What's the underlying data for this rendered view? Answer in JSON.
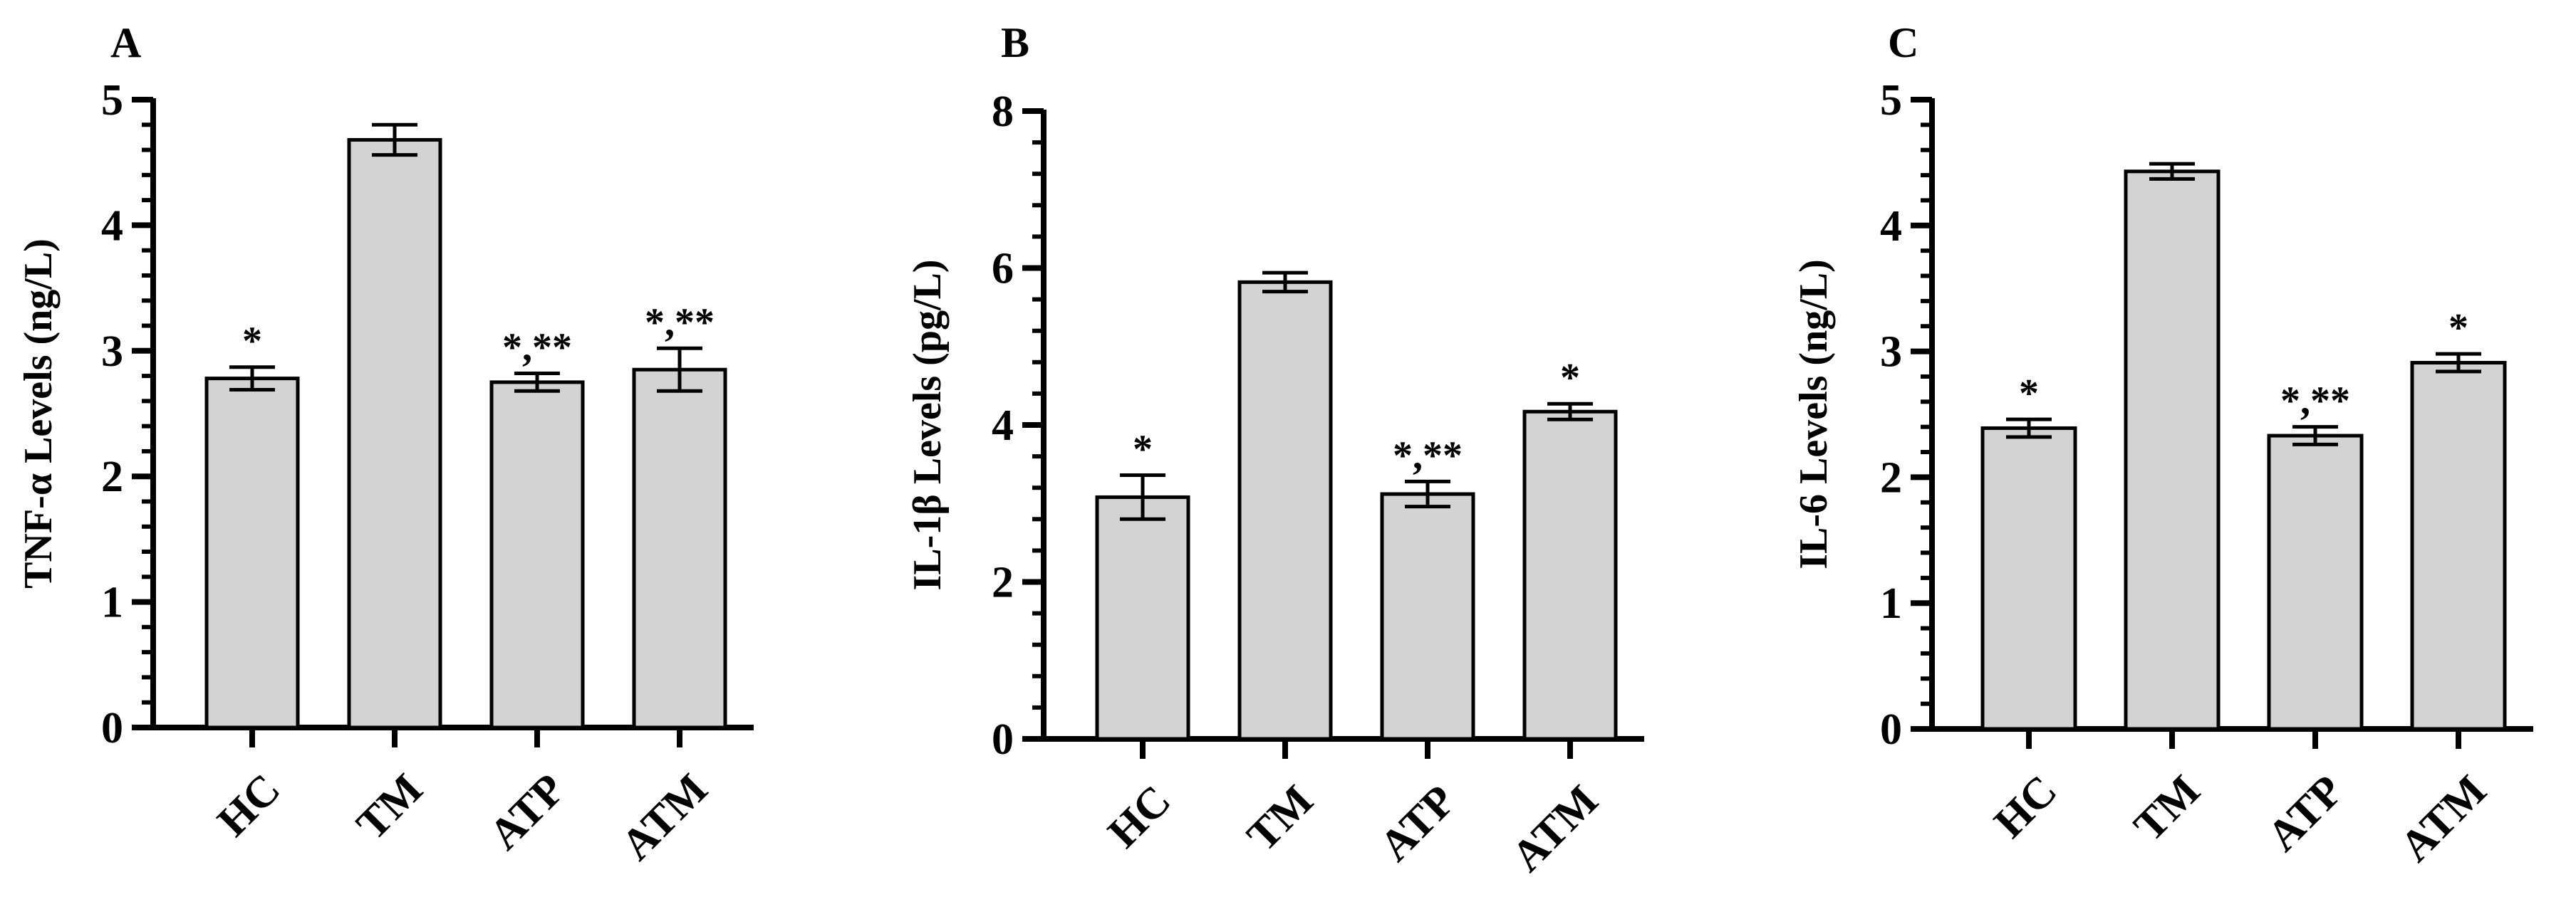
{
  "colors": {
    "bar_fill": "#d3d3d3",
    "stroke": "#000000",
    "background": "#ffffff"
  },
  "chart_data": [
    {
      "type": "bar",
      "panel": "A",
      "categories": [
        "HC",
        "TM",
        "ATP",
        "ATM"
      ],
      "values": [
        2.78,
        4.68,
        2.75,
        2.85
      ],
      "errors": [
        0.09,
        0.12,
        0.07,
        0.17
      ],
      "annotations": [
        "*",
        "",
        "*,**",
        "*,**"
      ],
      "ylabel": "TNF-α Levels (ng/L)",
      "ylim": [
        0,
        5
      ],
      "yticks": [
        0,
        1,
        2,
        3,
        4,
        5
      ],
      "grid": false
    },
    {
      "type": "bar",
      "panel": "B",
      "categories": [
        "HC",
        "TM",
        "ATP",
        "ATM"
      ],
      "values": [
        3.08,
        5.82,
        3.12,
        4.17
      ],
      "errors": [
        0.28,
        0.12,
        0.16,
        0.1
      ],
      "annotations": [
        "*",
        "",
        "*,**",
        "*"
      ],
      "ylabel": "IL-1β Levels (pg/L)",
      "ylim": [
        0,
        8
      ],
      "yticks": [
        0,
        2,
        4,
        6,
        8
      ],
      "grid": false
    },
    {
      "type": "bar",
      "panel": "C",
      "categories": [
        "HC",
        "TM",
        "ATP",
        "ATM"
      ],
      "values": [
        2.39,
        4.43,
        2.33,
        2.91
      ],
      "errors": [
        0.07,
        0.06,
        0.07,
        0.07
      ],
      "annotations": [
        "*",
        "",
        "*,**",
        "*"
      ],
      "ylabel": "IL-6 Levels (ng/L)",
      "ylim": [
        0,
        5
      ],
      "yticks": [
        0,
        1,
        2,
        3,
        4,
        5
      ],
      "grid": false
    }
  ]
}
